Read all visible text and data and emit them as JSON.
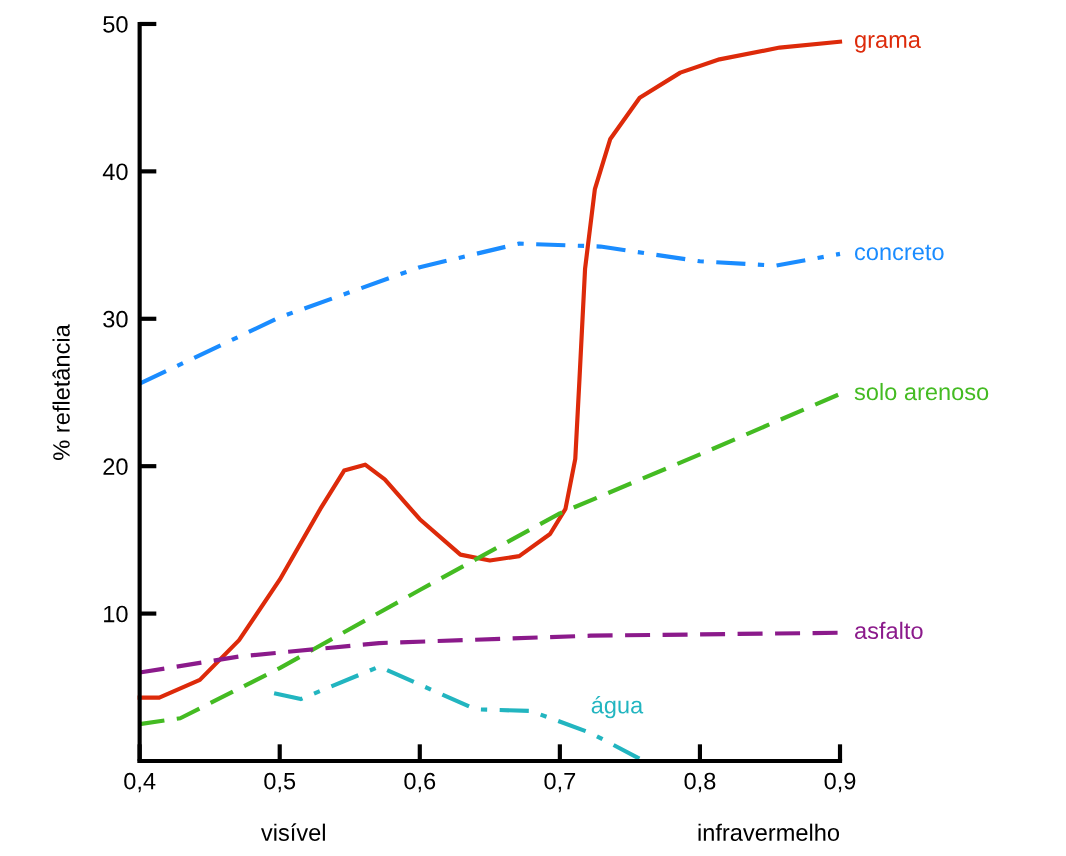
{
  "chart_data": {
    "type": "line",
    "ylabel": "% refletância",
    "xlim": [
      0.4,
      0.9
    ],
    "xticks": [
      {
        "value": 0.4,
        "label": "0,4"
      },
      {
        "value": 0.5,
        "label": "0,5"
      },
      {
        "value": 0.6,
        "label": "0,6"
      },
      {
        "value": 0.7,
        "label": "0,7"
      },
      {
        "value": 0.8,
        "label": "0,8"
      },
      {
        "value": 0.9,
        "label": "0,9"
      }
    ],
    "ylim": [
      0,
      50
    ],
    "yticks": [
      10,
      20,
      30,
      40,
      50
    ],
    "grid": false,
    "legend": false,
    "annotations": [
      "visível",
      "infravermelho"
    ],
    "series": [
      {
        "name": "grama",
        "color": "#dd2a0a",
        "line_style": "solid",
        "x": [
          0.4,
          0.414,
          0.443,
          0.471,
          0.5,
          0.529,
          0.546,
          0.561,
          0.575,
          0.6,
          0.629,
          0.65,
          0.671,
          0.693,
          0.704,
          0.711,
          0.714,
          0.718,
          0.725,
          0.736,
          0.757,
          0.786,
          0.814,
          0.857,
          0.9
        ],
        "values": [
          4.3,
          4.3,
          5.5,
          8.2,
          12.3,
          17.1,
          19.7,
          20.1,
          19.1,
          16.4,
          14.0,
          13.6,
          13.9,
          15.4,
          17.1,
          20.5,
          25.9,
          33.4,
          38.8,
          42.2,
          45.0,
          46.7,
          47.6,
          48.4,
          48.8
        ]
      },
      {
        "name": "concreto",
        "color": "#1a8cff",
        "line_style": "dashdot",
        "x": [
          0.4,
          0.5,
          0.6,
          0.671,
          0.729,
          0.8,
          0.854,
          0.9
        ],
        "values": [
          25.6,
          30.1,
          33.5,
          35.1,
          34.9,
          33.9,
          33.6,
          34.4
        ]
      },
      {
        "name": "solo arenoso",
        "color": "#44bb22",
        "line_style": "dashed",
        "x": [
          0.4,
          0.429,
          0.5,
          0.6,
          0.7,
          0.8,
          0.9
        ],
        "values": [
          2.5,
          2.9,
          6.3,
          11.6,
          16.8,
          20.8,
          24.9
        ]
      },
      {
        "name": "asfalto",
        "color": "#8b1a8b",
        "line_style": "dashed",
        "x": [
          0.4,
          0.472,
          0.571,
          0.722,
          0.9
        ],
        "values": [
          6.0,
          7.1,
          8.0,
          8.5,
          8.7
        ]
      },
      {
        "name": "água",
        "color": "#22b5c0",
        "line_style": "dashdot",
        "x": [
          0.496,
          0.515,
          0.571,
          0.64,
          0.679,
          0.722,
          0.76
        ],
        "values": [
          4.6,
          4.2,
          6.4,
          3.5,
          3.4,
          1.9,
          0
        ]
      }
    ]
  }
}
